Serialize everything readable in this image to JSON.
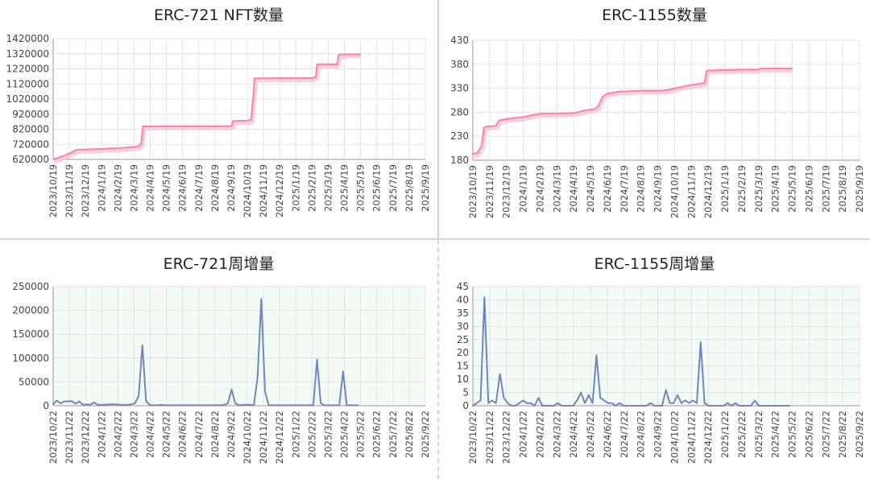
{
  "chart_data": [
    {
      "type": "line",
      "title": "ERC-721 NFT数量",
      "xlabel": "",
      "ylabel": "",
      "x_ticks": [
        "2023/10/19",
        "2023/11/19",
        "2023/12/19",
        "2024/1/19",
        "2024/2/19",
        "2024/3/19",
        "2024/4/19",
        "2024/5/19",
        "2024/6/19",
        "2024/7/19",
        "2024/8/19",
        "2024/9/19",
        "2024/10/19",
        "2024/11/19",
        "2024/12/19",
        "2025/1/19",
        "2025/2/19",
        "2025/3/19",
        "2025/4/19",
        "2025/5/19",
        "2025/6/19",
        "2025/7/19",
        "2025/8/19",
        "2025/9/19"
      ],
      "y_ticks": [
        "620000",
        "720000",
        "820000",
        "920000",
        "1020000",
        "1120000",
        "1220000",
        "1320000",
        "1420000"
      ],
      "ylim": [
        620000,
        1420000
      ],
      "xlim": [
        "2023-10-19",
        "2025-09-19"
      ],
      "grid": true,
      "line_color": "#ff7fa8",
      "x": [
        "2023-10-19",
        "2023-10-26",
        "2023-11-05",
        "2023-11-19",
        "2023-12-02",
        "2023-12-19",
        "2024-01-19",
        "2024-02-19",
        "2024-03-19",
        "2024-03-28",
        "2024-04-02",
        "2024-04-05",
        "2024-05-19",
        "2024-07-19",
        "2024-09-19",
        "2024-09-22",
        "2024-10-19",
        "2024-10-26",
        "2024-10-31",
        "2024-11-01",
        "2024-12-19",
        "2025-02-19",
        "2025-02-25",
        "2025-02-27",
        "2025-04-06",
        "2025-04-09",
        "2025-04-30",
        "2025-05-19"
      ],
      "values": [
        621000,
        628000,
        640000,
        660000,
        683000,
        686000,
        690000,
        695000,
        702000,
        708000,
        728000,
        838000,
        840000,
        840000,
        840000,
        875000,
        876000,
        883000,
        1080000,
        1157000,
        1158000,
        1159000,
        1168000,
        1250000,
        1250000,
        1315000,
        1316000,
        1316000
      ]
    },
    {
      "type": "line",
      "title": "ERC-1155数量",
      "xlabel": "",
      "ylabel": "",
      "x_ticks": [
        "2023/10/19",
        "2023/11/19",
        "2023/12/19",
        "2024/1/19",
        "2024/2/19",
        "2024/3/19",
        "2024/4/19",
        "2024/5/19",
        "2024/6/19",
        "2024/7/19",
        "2024/8/19",
        "2024/9/19",
        "2024/10/19",
        "2024/11/19",
        "2024/12/19",
        "2025/1/19",
        "2025/2/19",
        "2025/3/19",
        "2025/4/19",
        "2025/5/19",
        "2025/6/19",
        "2025/7/19",
        "2025/8/19",
        "2025/9/19"
      ],
      "y_ticks": [
        "180",
        "230",
        "280",
        "330",
        "380",
        "430"
      ],
      "ylim": [
        180,
        430
      ],
      "xlim": [
        "2023-10-19",
        "2025-09-19"
      ],
      "grid": true,
      "line_color": "#ff7fa8",
      "x": [
        "2023-10-19",
        "2023-10-27",
        "2023-11-04",
        "2023-11-08",
        "2023-11-14",
        "2023-11-30",
        "2023-12-06",
        "2023-12-19",
        "2024-01-19",
        "2024-02-04",
        "2024-02-19",
        "2024-03-19",
        "2024-04-12",
        "2024-04-19",
        "2024-05-10",
        "2024-05-25",
        "2024-06-02",
        "2024-06-10",
        "2024-06-19",
        "2024-07-10",
        "2024-07-19",
        "2024-08-19",
        "2024-09-19",
        "2024-10-05",
        "2024-10-19",
        "2024-11-19",
        "2024-12-12",
        "2024-12-16",
        "2024-12-19",
        "2025-01-19",
        "2025-02-19",
        "2025-03-19",
        "2025-03-24",
        "2025-04-19",
        "2025-05-19"
      ],
      "values": [
        193,
        195,
        210,
        248,
        250,
        252,
        263,
        266,
        270,
        274,
        277,
        277,
        278,
        278,
        284,
        286,
        292,
        312,
        319,
        323,
        323,
        325,
        325,
        326,
        330,
        337,
        341,
        366,
        367,
        368,
        369,
        369,
        371,
        371,
        371
      ]
    },
    {
      "type": "line",
      "title": "ERC-721周增量",
      "xlabel": "",
      "ylabel": "",
      "x_ticks": [
        "2023/10/22",
        "2023/11/22",
        "2023/12/22",
        "2024/1/22",
        "2024/2/22",
        "2024/3/22",
        "2024/4/22",
        "2024/5/22",
        "2024/6/22",
        "2024/7/22",
        "2024/8/22",
        "2024/9/22",
        "2024/10/22",
        "2024/11/22",
        "2024/12/22",
        "2025/1/22",
        "2025/2/22",
        "2025/3/22",
        "2025/4/22",
        "2025/5/22",
        "2025/6/22",
        "2025/7/22",
        "2025/8/22",
        "2025/9/22"
      ],
      "y_ticks": [
        "0",
        "50000",
        "100000",
        "150000",
        "200000",
        "250000"
      ],
      "ylim": [
        0,
        250000
      ],
      "xlim": [
        "2023-10-22",
        "2025-09-22"
      ],
      "grid": true,
      "line_color": "#7285c0",
      "background": "#f2fbf6",
      "x": [
        "2023-10-22",
        "2023-10-29",
        "2023-11-05",
        "2023-11-12",
        "2023-11-19",
        "2023-11-26",
        "2023-12-03",
        "2023-12-10",
        "2023-12-17",
        "2023-12-24",
        "2023-12-31",
        "2024-01-07",
        "2024-01-14",
        "2024-01-21",
        "2024-01-28",
        "2024-02-04",
        "2024-02-11",
        "2024-02-18",
        "2024-02-25",
        "2024-03-03",
        "2024-03-10",
        "2024-03-17",
        "2024-03-24",
        "2024-03-31",
        "2024-04-07",
        "2024-04-14",
        "2024-04-21",
        "2024-04-28",
        "2024-05-05",
        "2024-05-12",
        "2024-05-19",
        "2024-05-26",
        "2024-06-02",
        "2024-06-09",
        "2024-06-16",
        "2024-06-23",
        "2024-06-30",
        "2024-07-07",
        "2024-07-14",
        "2024-07-21",
        "2024-07-28",
        "2024-08-04",
        "2024-08-11",
        "2024-08-18",
        "2024-08-25",
        "2024-09-01",
        "2024-09-08",
        "2024-09-15",
        "2024-09-22",
        "2024-09-29",
        "2024-10-06",
        "2024-10-13",
        "2024-10-20",
        "2024-10-27",
        "2024-11-03",
        "2024-11-10",
        "2024-11-17",
        "2024-11-24",
        "2024-12-01",
        "2024-12-08",
        "2024-12-15",
        "2024-12-22",
        "2024-12-29",
        "2025-01-05",
        "2025-01-12",
        "2025-01-19",
        "2025-01-26",
        "2025-02-02",
        "2025-02-09",
        "2025-02-16",
        "2025-02-23",
        "2025-03-02",
        "2025-03-09",
        "2025-03-16",
        "2025-03-23",
        "2025-03-30",
        "2025-04-06",
        "2025-04-13",
        "2025-04-20",
        "2025-04-27",
        "2025-05-04",
        "2025-05-11",
        "2025-05-18"
      ],
      "values": [
        3000,
        11000,
        5000,
        9000,
        9000,
        10000,
        4000,
        9000,
        2000,
        3000,
        2000,
        7000,
        2000,
        2000,
        2000,
        3000,
        3000,
        3000,
        2000,
        2000,
        2000,
        3000,
        5000,
        20000,
        127000,
        10000,
        1000,
        1000,
        1000,
        2000,
        1000,
        1000,
        1000,
        1000,
        1000,
        1000,
        1000,
        1000,
        1000,
        1000,
        1000,
        1000,
        1000,
        1000,
        1000,
        1000,
        2000,
        5000,
        34000,
        5000,
        1000,
        2000,
        2000,
        2000,
        1000,
        60000,
        224000,
        30000,
        1000,
        1000,
        1000,
        1000,
        1000,
        1000,
        1000,
        1000,
        1000,
        1000,
        1000,
        1000,
        1000,
        97000,
        5000,
        1000,
        1000,
        1000,
        1000,
        1000,
        72000,
        1000,
        1000,
        1000,
        1000
      ]
    },
    {
      "type": "line",
      "title": "ERC-1155周增量",
      "xlabel": "",
      "ylabel": "",
      "x_ticks": [
        "2023/10/22",
        "2023/11/22",
        "2023/12/22",
        "2024/1/22",
        "2024/2/22",
        "2024/3/22",
        "2024/4/22",
        "2024/5/22",
        "2024/6/22",
        "2024/7/22",
        "2024/8/22",
        "2024/9/22",
        "2024/10/22",
        "2024/11/22",
        "2024/12/22",
        "2025/1/22",
        "2025/2/22",
        "2025/3/22",
        "2025/4/22",
        "2025/5/22",
        "2025/6/22",
        "2025/7/22",
        "2025/8/22",
        "2025/9/22"
      ],
      "y_ticks": [
        "0",
        "5",
        "10",
        "15",
        "20",
        "25",
        "30",
        "35",
        "40",
        "45"
      ],
      "ylim": [
        0,
        45
      ],
      "xlim": [
        "2023-10-22",
        "2025-09-22"
      ],
      "grid": true,
      "line_color": "#7285c0",
      "background": "#f2fbf6",
      "x": [
        "2023-10-22",
        "2023-10-29",
        "2023-11-05",
        "2023-11-12",
        "2023-11-19",
        "2023-11-26",
        "2023-12-03",
        "2023-12-10",
        "2023-12-17",
        "2023-12-24",
        "2023-12-31",
        "2024-01-07",
        "2024-01-14",
        "2024-01-21",
        "2024-01-28",
        "2024-02-04",
        "2024-02-11",
        "2024-02-18",
        "2024-02-25",
        "2024-03-03",
        "2024-03-10",
        "2024-03-17",
        "2024-03-24",
        "2024-03-31",
        "2024-04-07",
        "2024-04-14",
        "2024-04-21",
        "2024-04-28",
        "2024-05-05",
        "2024-05-12",
        "2024-05-19",
        "2024-05-26",
        "2024-06-02",
        "2024-06-09",
        "2024-06-16",
        "2024-06-23",
        "2024-06-30",
        "2024-07-07",
        "2024-07-14",
        "2024-07-21",
        "2024-07-28",
        "2024-08-04",
        "2024-08-11",
        "2024-08-18",
        "2024-08-25",
        "2024-09-01",
        "2024-09-08",
        "2024-09-15",
        "2024-09-22",
        "2024-09-29",
        "2024-10-06",
        "2024-10-13",
        "2024-10-20",
        "2024-10-27",
        "2024-11-03",
        "2024-11-10",
        "2024-11-17",
        "2024-11-24",
        "2024-12-01",
        "2024-12-08",
        "2024-12-15",
        "2024-12-22",
        "2024-12-29",
        "2025-01-05",
        "2025-01-12",
        "2025-01-19",
        "2025-01-26",
        "2025-02-02",
        "2025-02-09",
        "2025-02-16",
        "2025-02-23",
        "2025-03-02",
        "2025-03-09",
        "2025-03-16",
        "2025-03-23",
        "2025-03-30",
        "2025-04-06",
        "2025-04-13",
        "2025-04-20",
        "2025-04-27",
        "2025-05-04",
        "2025-05-11",
        "2025-05-18"
      ],
      "values": [
        0,
        1,
        2,
        41,
        1,
        2,
        1,
        12,
        3,
        1,
        0,
        0,
        1,
        2,
        1,
        1,
        0,
        3,
        0,
        0,
        0,
        0,
        1,
        0,
        0,
        0,
        0,
        2,
        5,
        1,
        4,
        1,
        19,
        3,
        2,
        1,
        1,
        0,
        1,
        0,
        0,
        0,
        0,
        0,
        0,
        0,
        1,
        0,
        0,
        0,
        6,
        1,
        1,
        4,
        1,
        2,
        1,
        2,
        1,
        24,
        1,
        0,
        0,
        0,
        0,
        0,
        1,
        0,
        1,
        0,
        0,
        0,
        0,
        2,
        0,
        0,
        0,
        0,
        0,
        0,
        0,
        0,
        0
      ]
    }
  ]
}
